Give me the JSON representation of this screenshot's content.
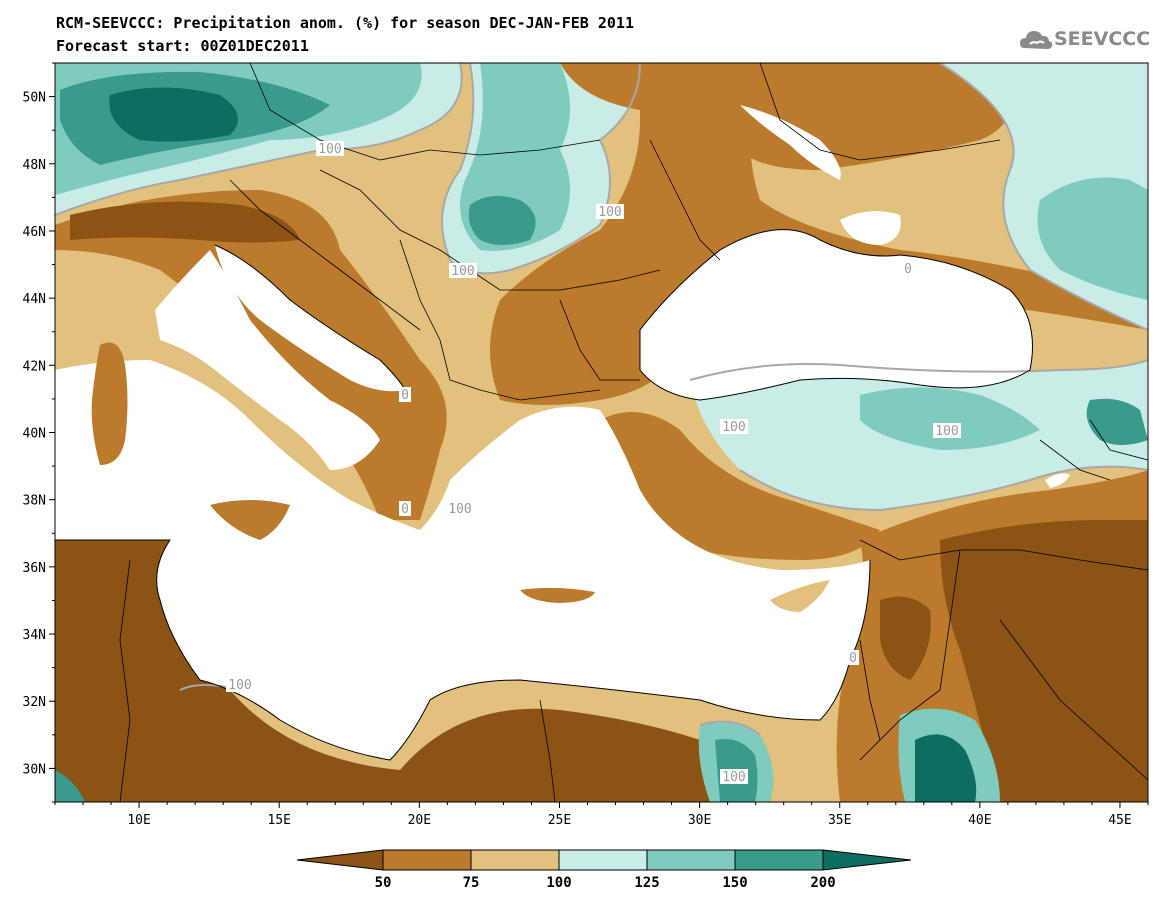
{
  "header": {
    "title": "RCM-SEEVCCC: Precipitation anom. (%) for season DEC-JAN-FEB 2011",
    "subtitle": "Forecast start: 00Z01DEC2011",
    "logo_text": "SEEVCCC"
  },
  "map": {
    "lon_ticks": [
      "10E",
      "15E",
      "20E",
      "25E",
      "30E",
      "35E",
      "40E",
      "45E"
    ],
    "lat_ticks": [
      "50N",
      "48N",
      "46N",
      "44N",
      "42N",
      "40N",
      "38N",
      "36N",
      "34N",
      "32N",
      "30N"
    ],
    "lon_range": [
      7,
      46
    ],
    "lat_range": [
      29,
      51
    ],
    "contour_labels": [
      "100",
      "100",
      "100",
      "100",
      "100",
      "100",
      "100",
      "100",
      "0",
      "0",
      "0",
      "0"
    ]
  },
  "colorbar": {
    "labels": [
      "50",
      "75",
      "100",
      "125",
      "150",
      "200"
    ],
    "colors": [
      "#8b5314",
      "#bb7a2c",
      "#e2c07d",
      "#c9ece6",
      "#7fcbbd",
      "#3a9b8c",
      "#0d6d62"
    ]
  },
  "colors": {
    "very_dry": "#8b5314",
    "dry": "#bb7a2c",
    "slightly_dry": "#e2c07d",
    "slightly_wet": "#c9ece6",
    "wet": "#7fcbbd",
    "very_wet": "#3a9b8c",
    "extreme_wet": "#0d6d62",
    "sea": "#ffffff"
  }
}
